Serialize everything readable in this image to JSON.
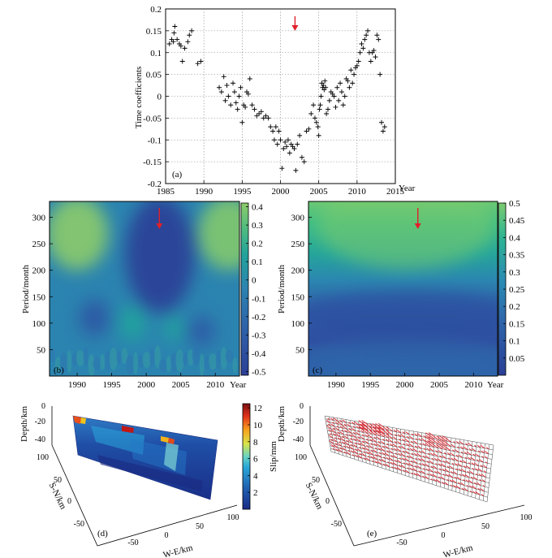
{
  "chart_data": [
    {
      "panel": "a",
      "type": "scatter",
      "label": "(a)",
      "xlabel": "Year",
      "ylabel": "Time coefficients",
      "xlim": [
        1985,
        2015
      ],
      "ylim": [
        -0.2,
        0.2
      ],
      "xticks": [
        1985,
        1990,
        1995,
        2000,
        2005,
        2010,
        2015
      ],
      "yticks": [
        -0.2,
        -0.15,
        -0.1,
        -0.05,
        0,
        0.05,
        0.1,
        0.15,
        0.2
      ],
      "xtick_labels": [
        "1985",
        "1990",
        "1995",
        "2000",
        "2005",
        "2010",
        "2015"
      ],
      "ytick_labels": [
        "-0.2",
        "-0.15",
        "-0.1",
        "-0.05",
        "0",
        "0.05",
        "0.1",
        "0.15",
        "0.2"
      ],
      "grid": true,
      "marker": "+",
      "arrow_x": 2001.9,
      "x": [
        1985.5,
        1985.8,
        1986.0,
        1986.1,
        1986.2,
        1986.5,
        1986.8,
        1987.0,
        1987.2,
        1987.5,
        1987.9,
        1988.1,
        1988.4,
        1989.2,
        1989.6,
        1992.0,
        1992.3,
        1992.6,
        1992.8,
        1993.0,
        1993.2,
        1993.5,
        1993.8,
        1994.0,
        1994.2,
        1994.4,
        1994.6,
        1994.8,
        1995.0,
        1995.2,
        1995.4,
        1995.6,
        1995.8,
        1996.0,
        1996.3,
        1996.6,
        1996.9,
        1997.2,
        1997.5,
        1997.8,
        1998.1,
        1998.4,
        1998.7,
        1999.0,
        1999.2,
        1999.4,
        1999.6,
        1999.8,
        2000.0,
        2000.2,
        2000.4,
        2000.6,
        2000.8,
        2001.0,
        2001.2,
        2001.4,
        2001.6,
        2001.8,
        2002.0,
        2002.2,
        2002.5,
        2002.8,
        2003.1,
        2003.4,
        2003.7,
        2004.0,
        2004.3,
        2004.5,
        2004.7,
        2004.9,
        2005.0,
        2005.1,
        2005.2,
        2005.3,
        2005.4,
        2005.5,
        2005.6,
        2005.7,
        2005.8,
        2005.9,
        2006.0,
        2006.2,
        2006.4,
        2006.6,
        2006.8,
        2007.0,
        2007.2,
        2007.4,
        2007.6,
        2007.8,
        2008.0,
        2008.2,
        2008.4,
        2008.6,
        2008.8,
        2009.0,
        2009.2,
        2009.4,
        2009.6,
        2009.8,
        2010.0,
        2010.2,
        2010.4,
        2010.6,
        2010.8,
        2011.0,
        2011.2,
        2011.4,
        2011.6,
        2011.8,
        2012.0,
        2012.2,
        2012.4,
        2012.6,
        2012.8,
        2013.0,
        2013.2,
        2013.4,
        2013.6
      ],
      "y": [
        0.12,
        0.13,
        0.125,
        0.145,
        0.16,
        0.13,
        0.12,
        0.115,
        0.08,
        0.11,
        0.125,
        0.14,
        0.15,
        0.075,
        0.08,
        0.02,
        0.01,
        0.045,
        -0.01,
        0.025,
        0.0,
        -0.02,
        0.03,
        0.01,
        -0.015,
        -0.03,
        0.0,
        0.02,
        -0.06,
        -0.02,
        -0.025,
        0.01,
        0.005,
        0.04,
        -0.02,
        -0.03,
        -0.045,
        -0.04,
        -0.035,
        -0.05,
        -0.045,
        -0.05,
        -0.07,
        -0.08,
        -0.1,
        -0.07,
        -0.11,
        -0.08,
        -0.1,
        -0.165,
        -0.12,
        -0.105,
        -0.115,
        -0.1,
        -0.13,
        -0.11,
        -0.115,
        -0.12,
        -0.17,
        -0.11,
        -0.09,
        -0.14,
        -0.15,
        -0.08,
        -0.075,
        -0.04,
        -0.02,
        -0.05,
        -0.06,
        -0.07,
        -0.09,
        -0.03,
        -0.02,
        0.0,
        0.03,
        0.02,
        0.025,
        0.015,
        0.035,
        0.02,
        -0.04,
        -0.03,
        -0.01,
        0.01,
        0.005,
        0.0,
        -0.025,
        0.02,
        -0.01,
        0.03,
        0.01,
        -0.02,
        0.0,
        0.04,
        0.035,
        0.02,
        0.06,
        0.03,
        0.05,
        0.065,
        0.07,
        0.08,
        0.1,
        0.12,
        0.11,
        0.13,
        0.14,
        0.15,
        0.1,
        0.08,
        0.1,
        0.105,
        0.09,
        0.14,
        0.13,
        0.05,
        -0.06,
        -0.08,
        -0.07
      ]
    },
    {
      "panel": "b",
      "type": "heatmap",
      "label": "(b)",
      "xlabel": "Year",
      "ylabel": "Period/month",
      "xlim": [
        1986,
        2013.5
      ],
      "ylim": [
        0,
        330
      ],
      "xticks": [
        1990,
        1995,
        2000,
        2005,
        2010
      ],
      "xtick_labels": [
        "1990",
        "1995",
        "2000",
        "2005",
        "2010"
      ],
      "yticks": [
        50,
        100,
        150,
        200,
        250,
        300
      ],
      "ytick_labels": [
        "50",
        "100",
        "150",
        "200",
        "250",
        "300"
      ],
      "colorbar_range": [
        -0.52,
        0.42
      ],
      "colorbar_ticks": [
        0.4,
        0.3,
        0.2,
        0.1,
        0,
        -0.1,
        -0.2,
        -0.3,
        -0.4,
        -0.5
      ],
      "colorbar_labels": [
        "0.4",
        "0.3",
        "0.2",
        "0.1",
        "0",
        "-0.1",
        "-0.2",
        "-0.3",
        "-0.4",
        "-0.5"
      ],
      "arrow_x": 2001.9,
      "features": [
        {
          "x": 1990,
          "y": 270,
          "sx": 4.5,
          "sy": 70,
          "v": 0.42
        },
        {
          "x": 2012,
          "y": 270,
          "sx": 4.5,
          "sy": 70,
          "v": 0.4
        },
        {
          "x": 2002,
          "y": 230,
          "sx": 5.0,
          "sy": 110,
          "v": -0.52
        },
        {
          "x": 1992.5,
          "y": 110,
          "sx": 2.2,
          "sy": 35,
          "v": -0.35
        },
        {
          "x": 2008,
          "y": 85,
          "sx": 2.0,
          "sy": 30,
          "v": -0.32
        },
        {
          "x": 1998,
          "y": 100,
          "sx": 2.0,
          "sy": 35,
          "v": 0.1
        },
        {
          "x": 2004,
          "y": 90,
          "sx": 1.5,
          "sy": 25,
          "v": 0.1
        }
      ]
    },
    {
      "panel": "c",
      "type": "heatmap",
      "label": "(c)",
      "xlabel": "Year",
      "ylabel": "Period/month",
      "xlim": [
        1986,
        2013.5
      ],
      "ylim": [
        0,
        330
      ],
      "xticks": [
        1990,
        1995,
        2000,
        2005,
        2010
      ],
      "xtick_labels": [
        "1990",
        "1995",
        "2000",
        "2005",
        "2010"
      ],
      "yticks": [
        50,
        100,
        150,
        200,
        250,
        300
      ],
      "ytick_labels": [
        "50",
        "100",
        "150",
        "200",
        "250",
        "300"
      ],
      "colorbar_range": [
        0.0,
        0.5
      ],
      "colorbar_ticks": [
        0.5,
        0.45,
        0.4,
        0.35,
        0.3,
        0.25,
        0.2,
        0.15,
        0.1,
        0.05
      ],
      "colorbar_labels": [
        "0.5",
        "0.45",
        "0.4",
        "0.35",
        "0.3",
        "0.25",
        "0.2",
        "0.15",
        "0.1",
        "0.05"
      ],
      "arrow_x": 2001.9,
      "value_at_top": 0.42,
      "value_at_bottom": 0.08
    },
    {
      "panel": "d",
      "type": "surface3d",
      "label": "(d)",
      "zlabel": "Depth/km",
      "ylabel": "S-N/km",
      "xlabel": "W-E/km",
      "ztick_labels": [
        "0",
        "-20",
        "-40"
      ],
      "ytick_labels": [
        "100",
        "50",
        "0",
        "-50"
      ],
      "xtick_labels": [
        "-50",
        "0",
        "50",
        "100"
      ],
      "colorbar_label": "Slip/mm",
      "colorbar_range": [
        0,
        12.5
      ],
      "colorbar_ticks": [
        12,
        10,
        8,
        6,
        4,
        2
      ],
      "colorbar_labels": [
        "12",
        "10",
        "8",
        "6",
        "4",
        "2"
      ]
    },
    {
      "panel": "e",
      "type": "vector3d",
      "label": "(e)",
      "zlabel": "Depth/km",
      "ylabel": "S-N/km",
      "xlabel": "W-E/km",
      "ztick_labels": [
        "0",
        "-20",
        "-40"
      ],
      "ytick_labels": [
        "100",
        "50",
        "0",
        "-50"
      ],
      "xtick_labels": [
        "-50",
        "0",
        "50",
        "100"
      ]
    }
  ]
}
